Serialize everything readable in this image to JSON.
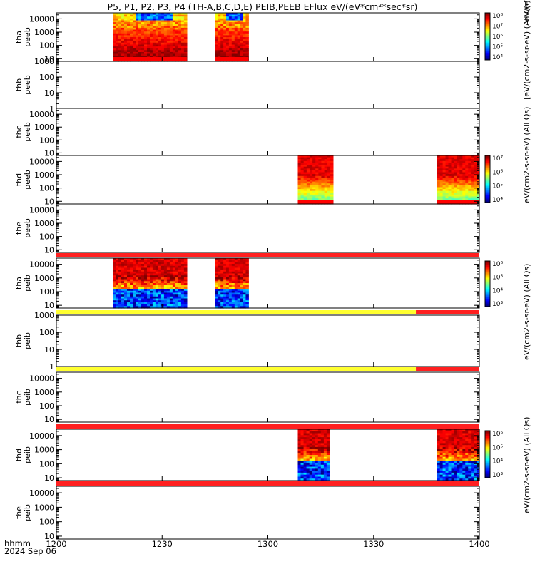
{
  "title": "P5, P1, P2, P3, P4 (TH-A,B,C,D,E) PEIB,PEEB EFlux eV/(eV*cm²*sec*sr)",
  "chart_data": {
    "type": "heatmap",
    "title": "P5, P1, P2, P3, P4 (TH-A,B,C,D,E) PEIB,PEEB EFlux eV/(eV*cm²*sec*sr)",
    "x_axis": {
      "range": [
        "1200",
        "1400"
      ],
      "ticks": [
        "1200",
        "1230",
        "1300",
        "1330",
        "1400"
      ],
      "label": "hhmm",
      "date": "2024 Sep 06"
    },
    "panels": [
      {
        "label": [
          "thb",
          "peeb"
        ],
        "yticks": [
          "1000",
          "100",
          "10",
          "1"
        ],
        "ylog": [
          0,
          3
        ],
        "data": [],
        "quality_bar": []
      },
      {
        "label": [
          "thc",
          "peeb"
        ],
        "yticks": [
          "10000",
          "1000",
          "100",
          "10"
        ],
        "ylog": [
          0.8,
          4.45
        ],
        "data": [],
        "quality_bar": []
      },
      {
        "label": [
          "thd",
          "peeb"
        ],
        "yticks": [
          "10000",
          "1000",
          "100",
          "10"
        ],
        "ylog": [
          0.8,
          4.45
        ],
        "data": [
          {
            "start": 1308.5,
            "end": 1318.5,
            "type": "peeb_d1"
          },
          {
            "start": 1348,
            "end": 1400,
            "type": "peeb_d2"
          }
        ],
        "quality_bar": []
      },
      {
        "label": [
          "the",
          "peeb"
        ],
        "yticks": [
          "10000",
          "1000",
          "100",
          "10"
        ],
        "ylog": [
          0.8,
          4.45
        ],
        "data": [],
        "quality_bar": [
          {
            "start": 1200,
            "end": 1400,
            "color": "red"
          }
        ]
      },
      {
        "label": [
          "tha",
          "peib"
        ],
        "yticks": [
          "10000",
          "1000",
          "100",
          "10"
        ],
        "ylog": [
          0.8,
          4.45
        ],
        "data": [
          {
            "start": 1216,
            "end": 1237,
            "type": "peib_a"
          },
          {
            "start": 1245,
            "end": 1254.5,
            "type": "peib_a"
          }
        ],
        "quality_bar": [
          {
            "start": 1200,
            "end": 1342,
            "color": "yellow"
          },
          {
            "start": 1342,
            "end": 1400,
            "color": "red"
          }
        ]
      },
      {
        "label": [
          "thb",
          "peib"
        ],
        "yticks": [
          "1000",
          "100",
          "10",
          "1"
        ],
        "ylog": [
          0,
          3
        ],
        "data": [],
        "quality_bar": [
          {
            "start": 1200,
            "end": 1342,
            "color": "yellow"
          },
          {
            "start": 1342,
            "end": 1390.5,
            "color": "red"
          },
          {
            "start": 1390.5,
            "end": 1396.5,
            "color": "yellow"
          },
          {
            "start": 1396.5,
            "end": 1400,
            "color": "red"
          }
        ]
      },
      {
        "label": [
          "thc",
          "peib"
        ],
        "yticks": [
          "10000",
          "1000",
          "100",
          "10"
        ],
        "ylog": [
          0.8,
          4.45
        ],
        "data": [],
        "quality_bar": [
          {
            "start": 1200,
            "end": 1400,
            "color": "red"
          }
        ]
      },
      {
        "label": [
          "thd",
          "peib"
        ],
        "yticks": [
          "10000",
          "1000",
          "100",
          "10"
        ],
        "ylog": [
          0.8,
          4.45
        ],
        "data": [
          {
            "start": 1308.5,
            "end": 1317.5,
            "type": "peib_d"
          },
          {
            "start": 1348,
            "end": 1400,
            "type": "peib_d"
          }
        ],
        "quality_bar": [
          {
            "start": 1200,
            "end": 1400,
            "color": "red"
          }
        ]
      },
      {
        "label": [
          "the",
          "peib"
        ],
        "yticks": [
          "10000",
          "1000",
          "100",
          "10"
        ],
        "ylog": [
          0.8,
          4.45
        ],
        "data": [],
        "quality_bar": []
      }
    ],
    "first_panel": {
      "label": [
        "tha",
        "peeb"
      ],
      "yticks": [
        "10000",
        "1000",
        "100",
        "10"
      ],
      "ylog": [
        0.8,
        4.45
      ],
      "data": [
        {
          "start": 1216,
          "end": 1237,
          "type": "peeb_a"
        },
        {
          "start": 1245,
          "end": 1254.5,
          "type": "peeb_a"
        }
      ],
      "quality_bar": []
    },
    "colorbars": [
      {
        "label": "eV/(cm2-s-sr-eV) (All Qs)",
        "ticks": [
          "10⁸",
          "10⁷",
          "10⁶",
          "10⁵",
          "10⁴"
        ],
        "clip_label": "eV/(eV*cm²*sec*sr) (Al"
      },
      {
        "label": "eV/(cm2-s-sr-eV) (All Qs)",
        "ticks": [
          "10⁷",
          "10⁶",
          "10⁵",
          "10⁴"
        ]
      },
      {
        "label": "eV/(cm2-s-sr-eV) (All Qs)",
        "ticks": [
          "10⁶",
          "10⁵",
          "10⁴",
          "10³"
        ]
      },
      {
        "label": "eV/(cm2-s-sr-eV) (All Qs)",
        "ticks": [
          "10⁶",
          "10⁵",
          "10⁴",
          "10³"
        ]
      }
    ],
    "colors": {
      "red": "#ff2020",
      "yellow": "#ffff30",
      "axis": "#000000"
    }
  }
}
